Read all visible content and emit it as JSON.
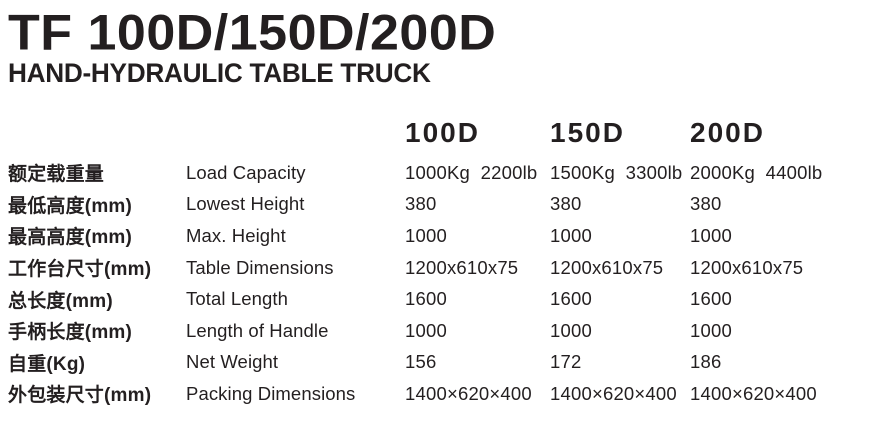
{
  "header": {
    "title": "TF 100D/150D/200D",
    "subtitle": "HAND-HYDRAULIC TABLE TRUCK"
  },
  "table": {
    "columns": [
      "100D",
      "150D",
      "200D"
    ],
    "rows": [
      {
        "cn": "额定载重量",
        "en": "Load Capacity",
        "values": [
          "1000Kg  2200lb",
          "1500Kg  3300lb",
          "2000Kg  4400lb"
        ]
      },
      {
        "cn": "最低高度(mm)",
        "en": "Lowest Height",
        "values": [
          "380",
          "380",
          "380"
        ]
      },
      {
        "cn": "最高高度(mm)",
        "en": "Max. Height",
        "values": [
          "1000",
          "1000",
          "1000"
        ]
      },
      {
        "cn": "工作台尺寸(mm)",
        "en": "Table Dimensions",
        "values": [
          "1200x610x75",
          "1200x610x75",
          "1200x610x75"
        ]
      },
      {
        "cn": "总长度(mm)",
        "en": "Total Length",
        "values": [
          "1600",
          "1600",
          "1600"
        ]
      },
      {
        "cn": "手柄长度(mm)",
        "en": "Length of Handle",
        "values": [
          "1000",
          "1000",
          "1000"
        ]
      },
      {
        "cn": "自重(Kg)",
        "en": "Net Weight",
        "values": [
          "156",
          "172",
          "186"
        ]
      },
      {
        "cn": "外包装尺寸(mm)",
        "en": "Packing Dimensions",
        "values": [
          "1400×620×400",
          "1400×620×400",
          "1400×620×400"
        ]
      }
    ]
  },
  "colors": {
    "text": "#231f20",
    "background": "#ffffff"
  }
}
